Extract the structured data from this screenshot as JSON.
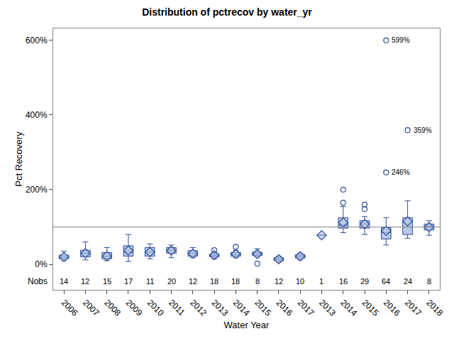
{
  "chart_data": {
    "type": "box",
    "title": "Distribution of pctrecov by water_yr",
    "x_label": "Water Year",
    "y_label": "Pct Recovery",
    "categories": [
      "2006",
      "2007",
      "2008",
      "2009",
      "2010",
      "2011",
      "2012",
      "2013",
      "2014",
      "2015",
      "2016",
      "2017",
      "2013",
      "2014",
      "2015",
      "2016",
      "2017",
      "2018"
    ],
    "q1": [
      15,
      20,
      15,
      22,
      22,
      30,
      22,
      20,
      22,
      24,
      10,
      17,
      78,
      97,
      97,
      68,
      80,
      92
    ],
    "median": [
      20,
      30,
      22,
      33,
      33,
      38,
      30,
      24,
      27,
      28,
      14,
      22,
      78,
      105,
      108,
      85,
      100,
      102
    ],
    "q3": [
      25,
      38,
      32,
      50,
      45,
      45,
      37,
      28,
      32,
      33,
      18,
      26,
      78,
      125,
      117,
      98,
      125,
      108
    ],
    "lower_whisker": [
      10,
      12,
      10,
      8,
      15,
      18,
      18,
      15,
      18,
      20,
      6,
      12,
      78,
      85,
      80,
      52,
      70,
      78
    ],
    "upper_whisker": [
      35,
      60,
      45,
      80,
      55,
      52,
      45,
      32,
      38,
      42,
      22,
      30,
      78,
      155,
      128,
      125,
      170,
      117
    ],
    "mean": [
      20,
      30,
      22,
      37,
      33,
      37,
      29,
      25,
      28,
      28,
      14,
      22,
      78,
      112,
      108,
      90,
      115,
      100
    ],
    "outliers": [
      [],
      [],
      [],
      [],
      [],
      [],
      [],
      [
        38
      ],
      [
        47
      ],
      [
        2
      ],
      [],
      [],
      [],
      [
        165,
        200
      ],
      [
        148,
        160
      ],
      [
        246,
        599
      ],
      [
        359
      ],
      []
    ],
    "nobs_label": "Nobs",
    "nobs": [
      14,
      12,
      15,
      17,
      11,
      20,
      12,
      18,
      18,
      8,
      12,
      10,
      1,
      16,
      29,
      64,
      24,
      8
    ],
    "nobs_y": -46,
    "annotations": [
      {
        "x": 15,
        "y": 599,
        "text": "599%"
      },
      {
        "x": 15,
        "y": 246,
        "text": "246%"
      },
      {
        "x": 16,
        "y": 359,
        "text": "359%"
      }
    ],
    "reference_line": 100,
    "color": "#b8c8e8",
    "grid": false,
    "ylim": [
      -68,
      631
    ],
    "yticks": [
      {
        "value": 0,
        "label": "0%"
      },
      {
        "value": 200,
        "label": "200%"
      },
      {
        "value": 400,
        "label": "400%"
      },
      {
        "value": 600,
        "label": "600%"
      }
    ]
  }
}
